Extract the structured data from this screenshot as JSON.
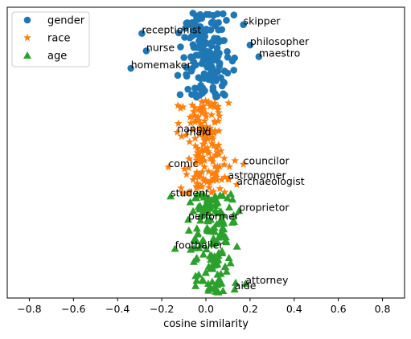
{
  "chart_data": {
    "type": "scatter",
    "title": "",
    "xlabel": "cosine similarity",
    "ylabel": "",
    "xlim": [
      -0.9,
      0.9
    ],
    "xticks": [
      -0.8,
      -0.6,
      -0.4,
      -0.2,
      0.0,
      0.2,
      0.4,
      0.6,
      0.8
    ],
    "xtick_labels": [
      "−0.8",
      "−0.6",
      "−0.4",
      "−0.2",
      "0.0",
      "0.2",
      "0.4",
      "0.6",
      "0.8"
    ],
    "ylim": [
      0,
      1
    ],
    "y_axis_visible": false,
    "grid": false,
    "legend_position": "top-left",
    "series": [
      {
        "name": "gender",
        "marker": "circle",
        "color": "#1f77b4",
        "y_range": [
          0.69,
          0.98
        ],
        "x_center": 0.0,
        "x_spread": 0.1,
        "labeled_points": [
          {
            "label": "skipper",
            "x": 0.17,
            "y": 0.94
          },
          {
            "label": "receptionist",
            "x": -0.29,
            "y": 0.91
          },
          {
            "label": "philosopher",
            "x": 0.2,
            "y": 0.87
          },
          {
            "label": "nurse",
            "x": -0.27,
            "y": 0.85
          },
          {
            "label": "maestro",
            "x": 0.24,
            "y": 0.83
          },
          {
            "label": "homemaker",
            "x": -0.34,
            "y": 0.79
          }
        ]
      },
      {
        "name": "race",
        "marker": "star",
        "color": "#ff7f0e",
        "y_range": [
          0.36,
          0.68
        ],
        "x_center": 0.0,
        "x_spread": 0.09,
        "labeled_points": [
          {
            "label": "nanny",
            "x": -0.13,
            "y": 0.57
          },
          {
            "label": "maid",
            "x": -0.09,
            "y": 0.56
          },
          {
            "label": "councilor",
            "x": 0.17,
            "y": 0.46
          },
          {
            "label": "comic",
            "x": -0.17,
            "y": 0.45
          },
          {
            "label": "astronomer",
            "x": 0.1,
            "y": 0.41
          },
          {
            "label": "archaeologist",
            "x": 0.14,
            "y": 0.39
          }
        ]
      },
      {
        "name": "age",
        "marker": "triangle",
        "color": "#2ca02c",
        "y_range": [
          0.02,
          0.36
        ],
        "x_center": 0.03,
        "x_spread": 0.09,
        "labeled_points": [
          {
            "label": "student",
            "x": -0.16,
            "y": 0.35
          },
          {
            "label": "proprietor",
            "x": 0.15,
            "y": 0.3
          },
          {
            "label": "performer",
            "x": -0.08,
            "y": 0.27
          },
          {
            "label": "footballer",
            "x": -0.14,
            "y": 0.17
          },
          {
            "label": "attorney",
            "x": 0.18,
            "y": 0.05
          },
          {
            "label": "aide",
            "x": 0.13,
            "y": 0.03
          }
        ]
      }
    ]
  }
}
